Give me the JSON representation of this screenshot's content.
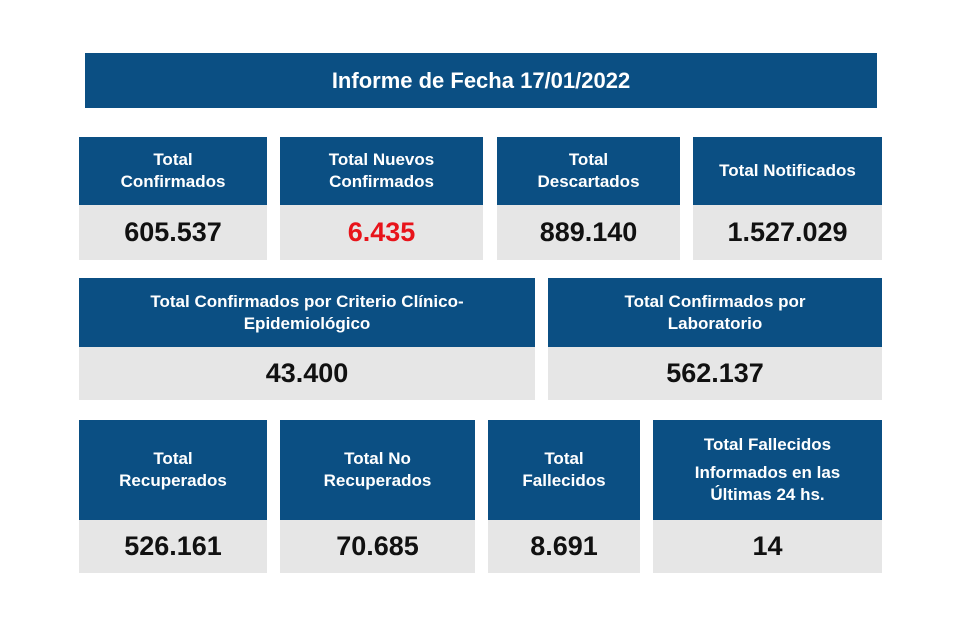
{
  "header": {
    "title": "Informe de Fecha 17/01/2022"
  },
  "rows": [
    [
      {
        "label": [
          "Total",
          "Confirmados"
        ],
        "value": "605.537"
      },
      {
        "label": [
          "Total Nuevos",
          "Confirmados"
        ],
        "value": "6.435",
        "value_color": "#e8141b"
      },
      {
        "label": [
          "Total",
          "Descartados"
        ],
        "value": "889.140"
      },
      {
        "label": [
          "Total Notificados"
        ],
        "value": "1.527.029"
      }
    ],
    [
      {
        "label": [
          "Total Confirmados por Criterio Clínico-",
          "Epidemiológico"
        ],
        "value": "43.400"
      },
      {
        "label": [
          "Total Confirmados por",
          "Laboratorio"
        ],
        "value": "562.137"
      }
    ],
    [
      {
        "label": [
          "Total",
          "Recuperados"
        ],
        "value": "526.161"
      },
      {
        "label": [
          "Total No",
          "Recuperados"
        ],
        "value": "70.685"
      },
      {
        "label": [
          "Total",
          "Fallecidos"
        ],
        "value": "8.691"
      },
      {
        "label": [
          "Total Fallecidos",
          "Informados en las",
          "Últimas 24 hs."
        ],
        "value": "14"
      }
    ]
  ]
}
